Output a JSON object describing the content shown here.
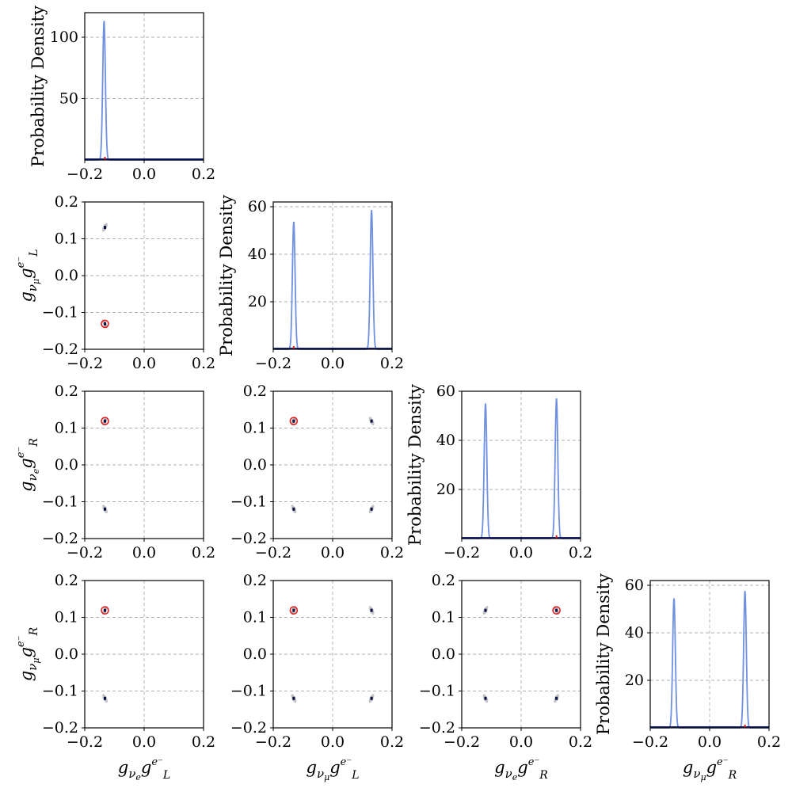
{
  "params": [
    {
      "sym": "g",
      "nu": "νe",
      "side": "L",
      "label_base": "g",
      "label_sub": "ν",
      "label_subsub": "e",
      "label_sup": "e⁻",
      "label_supsub": "L"
    },
    {
      "sym": "g",
      "nu": "νμ",
      "side": "L",
      "label_base": "g",
      "label_sub": "ν",
      "label_subsub": "μ",
      "label_sup": "e⁻",
      "label_supsub": "L"
    },
    {
      "sym": "g",
      "nu": "νe",
      "side": "R",
      "label_base": "g",
      "label_sub": "ν",
      "label_subsub": "e",
      "label_sup": "e⁻",
      "label_supsub": "R"
    },
    {
      "sym": "g",
      "nu": "νμ",
      "side": "R",
      "label_base": "g",
      "label_sub": "ν",
      "label_subsub": "μ",
      "label_sup": "e⁻",
      "label_supsub": "R"
    }
  ],
  "diag_ylabel": "Probability Density",
  "chart_data": {
    "type": "corner",
    "xlim": [
      -0.2,
      0.2
    ],
    "ylim": [
      -0.2,
      0.2
    ],
    "ticks": [
      -0.2,
      0.0,
      0.2
    ],
    "tick_labels": [
      "−0.2",
      "0.0",
      "0.2"
    ],
    "offdiag_ticks": [
      -0.2,
      -0.1,
      0.0,
      0.1,
      0.2
    ],
    "offdiag_tick_labels": [
      "−0.2",
      "−0.1",
      "0.0",
      "0.1",
      "0.2"
    ],
    "grid": true,
    "colors": {
      "density": "#7090e0",
      "baseline": "#1a237e",
      "truth": "#e02020",
      "sample": "#b8b8c0",
      "point": "#0a1040"
    },
    "diagonals": [
      {
        "param": 0,
        "ylim": [
          0,
          120
        ],
        "yticks": [
          50,
          100
        ],
        "peaks": [
          {
            "x": -0.135,
            "height": 113,
            "width": 0.0045
          }
        ],
        "truth": -0.132
      },
      {
        "param": 1,
        "ylim": [
          0,
          62
        ],
        "yticks": [
          20,
          40,
          60
        ],
        "peaks": [
          {
            "x": -0.131,
            "height": 53.5,
            "width": 0.0045
          },
          {
            "x": 0.131,
            "height": 58.5,
            "width": 0.0045
          }
        ],
        "truth": -0.131
      },
      {
        "param": 2,
        "ylim": [
          0,
          60
        ],
        "yticks": [
          20,
          40,
          60
        ],
        "peaks": [
          {
            "x": -0.12,
            "height": 55,
            "width": 0.0045
          },
          {
            "x": 0.119,
            "height": 57,
            "width": 0.0045
          }
        ],
        "truth": 0.119
      },
      {
        "param": 3,
        "ylim": [
          0,
          62
        ],
        "yticks": [
          20,
          40,
          60
        ],
        "peaks": [
          {
            "x": -0.12,
            "height": 54.5,
            "width": 0.0045
          },
          {
            "x": 0.119,
            "height": 57.5,
            "width": 0.0045
          }
        ],
        "truth": 0.119
      }
    ],
    "offdiagonals": [
      {
        "row": 1,
        "col": 0,
        "truth": [
          -0.132,
          -0.131
        ],
        "clusters": [
          [
            -0.132,
            0.131
          ],
          [
            -0.132,
            -0.131
          ]
        ]
      },
      {
        "row": 2,
        "col": 0,
        "truth": [
          -0.132,
          0.119
        ],
        "clusters": [
          [
            -0.132,
            0.119
          ],
          [
            -0.132,
            -0.12
          ]
        ]
      },
      {
        "row": 2,
        "col": 1,
        "truth": [
          -0.131,
          0.119
        ],
        "clusters": [
          [
            -0.131,
            0.119
          ],
          [
            0.131,
            0.119
          ],
          [
            -0.131,
            -0.12
          ],
          [
            0.131,
            -0.12
          ]
        ]
      },
      {
        "row": 3,
        "col": 0,
        "truth": [
          -0.132,
          0.119
        ],
        "clusters": [
          [
            -0.132,
            0.119
          ],
          [
            -0.132,
            -0.12
          ]
        ]
      },
      {
        "row": 3,
        "col": 1,
        "truth": [
          -0.131,
          0.119
        ],
        "clusters": [
          [
            -0.131,
            0.119
          ],
          [
            0.131,
            0.119
          ],
          [
            -0.131,
            -0.12
          ],
          [
            0.131,
            -0.12
          ]
        ]
      },
      {
        "row": 3,
        "col": 2,
        "truth": [
          0.119,
          0.119
        ],
        "clusters": [
          [
            0.119,
            0.119
          ],
          [
            -0.12,
            0.119
          ],
          [
            -0.12,
            -0.12
          ],
          [
            0.119,
            -0.12
          ]
        ]
      }
    ]
  }
}
